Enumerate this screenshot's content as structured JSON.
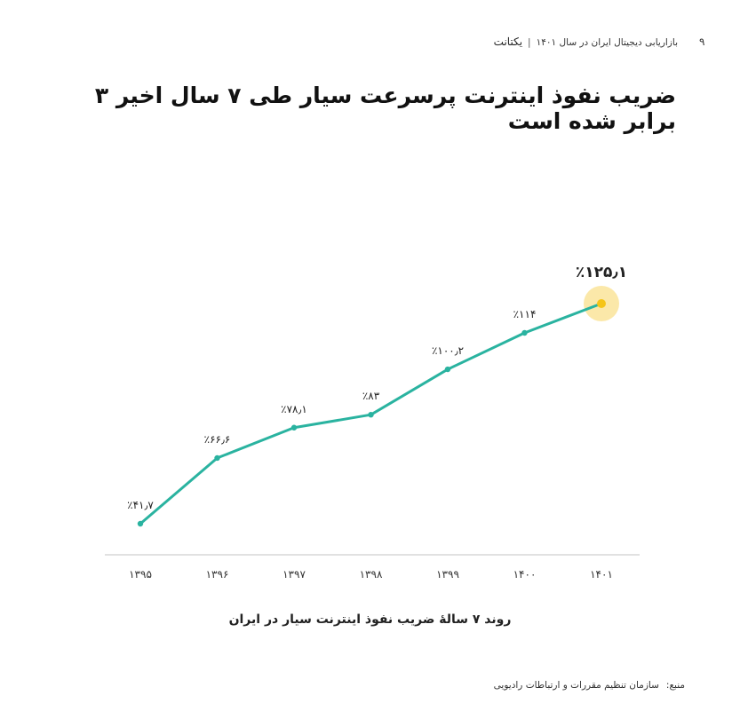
{
  "header": {
    "page_number": "۹",
    "report_title": "بازاریابی دیجیتال ایران در سال ۱۴۰۱",
    "separator": "|",
    "logo_text": "یکتانت"
  },
  "page_title": "ضریب نفوذ اینترنت پرسرعت سیار طی ۷ سال اخیر ۳ برابر شده است",
  "caption": "روند ۷ سالهٔ ضریب نفوذ اینترنت سیار در ایران",
  "source": {
    "label": "منبع:",
    "text": "سازمان تنظیم مقررات و ارتباطات رادیویی"
  },
  "colors": {
    "line": "#2ab3a0",
    "highlight": "#f5c518",
    "highlight_glow": "#fbe6a0",
    "axis": "#cfcfcf"
  },
  "chart_data": {
    "type": "line",
    "categories": [
      "۱۳۹۵",
      "۱۳۹۶",
      "۱۳۹۷",
      "۱۳۹۸",
      "۱۳۹۹",
      "۱۴۰۰",
      "۱۴۰۱"
    ],
    "values": [
      41.7,
      66.6,
      78.1,
      83,
      100.2,
      114,
      125.1
    ],
    "data_labels": [
      "٪۴۱٫۷",
      "٪۶۶٫۶",
      "٪۷۸٫۱",
      "٪۸۳",
      "٪۱۰۰٫۲",
      "٪۱۱۴",
      "٪۱۲۵٫۱"
    ],
    "highlight_index": 6,
    "title": "",
    "xlabel": "",
    "ylabel": "",
    "grid": false
  }
}
